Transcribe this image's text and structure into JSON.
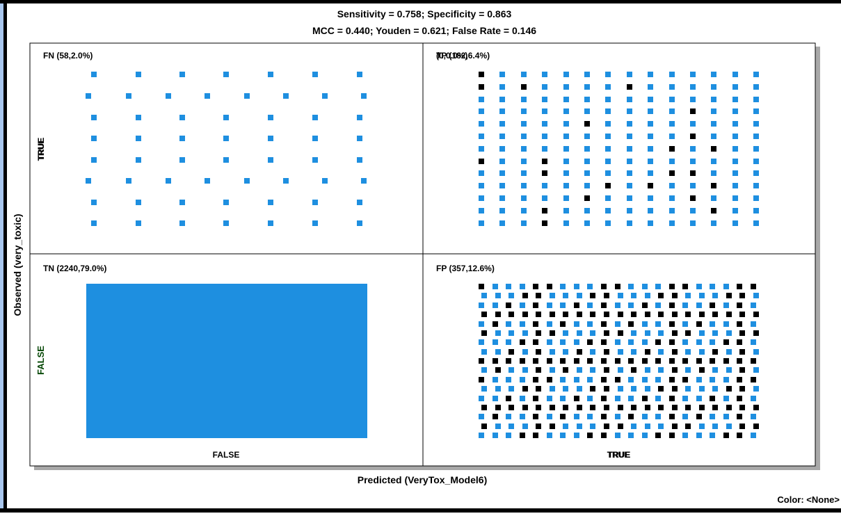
{
  "chart_data": {
    "type": "scatter",
    "title_line1": "Sensitivity = 0.758; Specificity = 0.863",
    "title_line2": "MCC = 0.440; Youden = 0.621; False Rate = 0.146",
    "xlabel": "Predicted (VeryTox_Model6)",
    "ylabel": "Observed (very_toxic)",
    "x_categories": [
      "FALSE",
      "TRUE"
    ],
    "y_categories": [
      "FALSE",
      "TRUE"
    ],
    "x_tick_overlap": "TRUE",
    "y_tick_overlap": "TRUE",
    "color_label": "Color: <None>",
    "colors": {
      "marker_blue": "#1e8fe0",
      "marker_black": "#000000",
      "frame": "#000000",
      "shadow": "#a8a8a8",
      "outer_border": "#000000",
      "outer_accent": "#a9c7ee",
      "ytick": "#004400"
    },
    "quadrants": [
      {
        "id": "FN",
        "label": "FN (58,2.0%)",
        "count": 58,
        "percent": 2.0,
        "predicted": "FALSE",
        "observed": "TRUE"
      },
      {
        "id": "TP",
        "label": "TP (182,6.4%)",
        "overlay_label": "(0,0.0%)",
        "count": 182,
        "percent": 6.4,
        "predicted": "TRUE",
        "observed": "TRUE"
      },
      {
        "id": "TN",
        "label": "TN (2240,79.0%)",
        "count": 2240,
        "percent": 79.0,
        "predicted": "FALSE",
        "observed": "FALSE"
      },
      {
        "id": "FP",
        "label": "FP (357,12.6%)",
        "count": 357,
        "percent": 12.6,
        "predicted": "TRUE",
        "observed": "FALSE"
      }
    ]
  }
}
